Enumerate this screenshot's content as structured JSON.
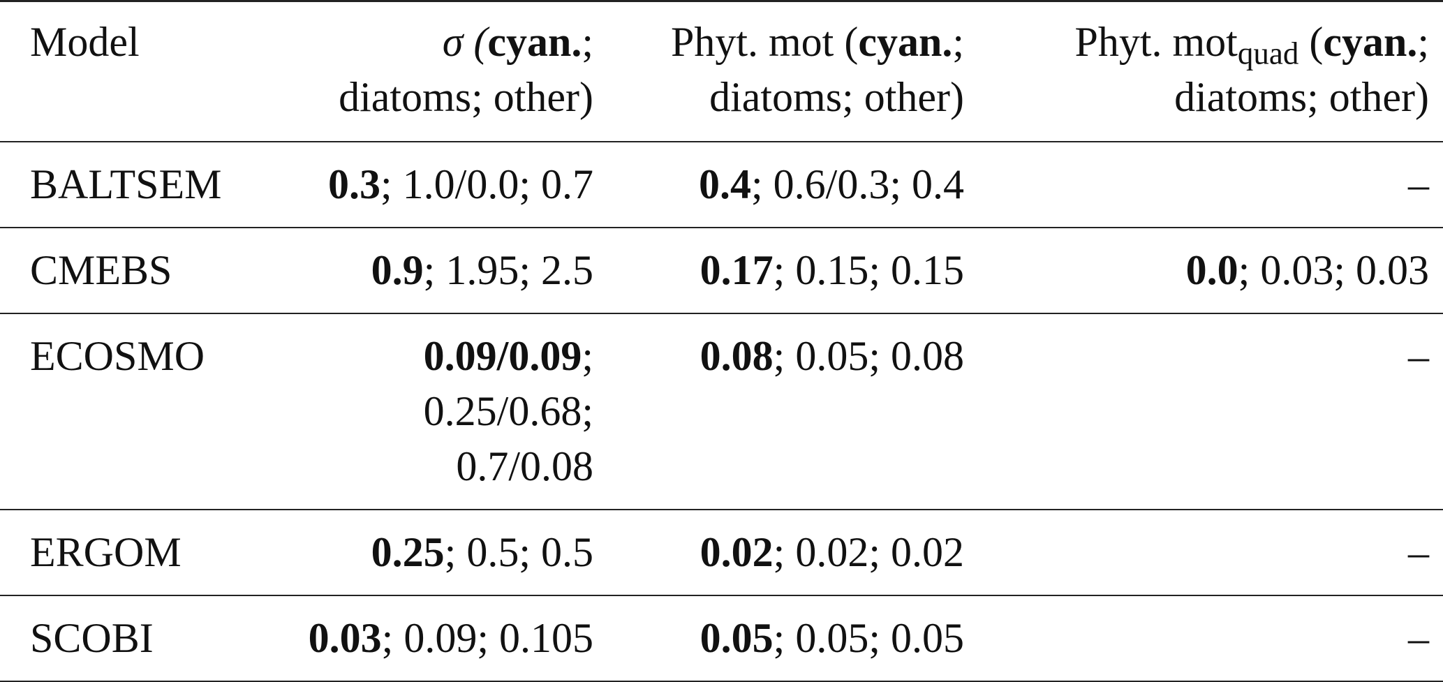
{
  "table": {
    "header": [
      [
        {
          "t": "Model"
        }
      ],
      [
        {
          "t": "σ (",
          "i": true
        },
        {
          "t": "cyan.",
          "b": true
        },
        {
          "t": "; diatoms; other)"
        }
      ],
      [
        {
          "t": "Phyt. mot ("
        },
        {
          "t": "cyan.",
          "b": true
        },
        {
          "t": "; diatoms; other)"
        }
      ],
      [
        {
          "t": "Phyt. mot"
        },
        {
          "t": "quad",
          "sub": true
        },
        {
          "t": " ("
        },
        {
          "t": "cyan.",
          "b": true
        },
        {
          "t": "; diatoms; other)"
        }
      ]
    ],
    "rows": [
      [
        [
          {
            "t": "BALTSEM"
          }
        ],
        [
          {
            "t": "0.3",
            "b": true
          },
          {
            "t": "; 1.0/0.0; 0.7"
          }
        ],
        [
          {
            "t": "0.4",
            "b": true
          },
          {
            "t": "; 0.6/0.3; 0.4"
          }
        ],
        [
          {
            "t": "–"
          }
        ]
      ],
      [
        [
          {
            "t": "CMEBS"
          }
        ],
        [
          {
            "t": "0.9",
            "b": true
          },
          {
            "t": "; 1.95; 2.5"
          }
        ],
        [
          {
            "t": "0.17",
            "b": true
          },
          {
            "t": "; 0.15; 0.15"
          }
        ],
        [
          {
            "t": "0.0",
            "b": true
          },
          {
            "t": "; 0.03; 0.03"
          }
        ]
      ],
      [
        [
          {
            "t": "ECOSMO"
          }
        ],
        [
          {
            "t": "0.09/0.09",
            "b": true
          },
          {
            "t": "; 0.25/0.68; 0.7/0.08"
          }
        ],
        [
          {
            "t": "0.08",
            "b": true
          },
          {
            "t": "; 0.05; 0.08"
          }
        ],
        [
          {
            "t": "–"
          }
        ]
      ],
      [
        [
          {
            "t": "ERGOM"
          }
        ],
        [
          {
            "t": "0.25",
            "b": true
          },
          {
            "t": "; 0.5; 0.5"
          }
        ],
        [
          {
            "t": "0.02",
            "b": true
          },
          {
            "t": "; 0.02; 0.02"
          }
        ],
        [
          {
            "t": "–"
          }
        ]
      ],
      [
        [
          {
            "t": "SCOBI"
          }
        ],
        [
          {
            "t": "0.03",
            "b": true
          },
          {
            "t": "; 0.09; 0.105"
          }
        ],
        [
          {
            "t": "0.05",
            "b": true
          },
          {
            "t": "; 0.05; 0.05"
          }
        ],
        [
          {
            "t": "–"
          }
        ]
      ]
    ]
  }
}
